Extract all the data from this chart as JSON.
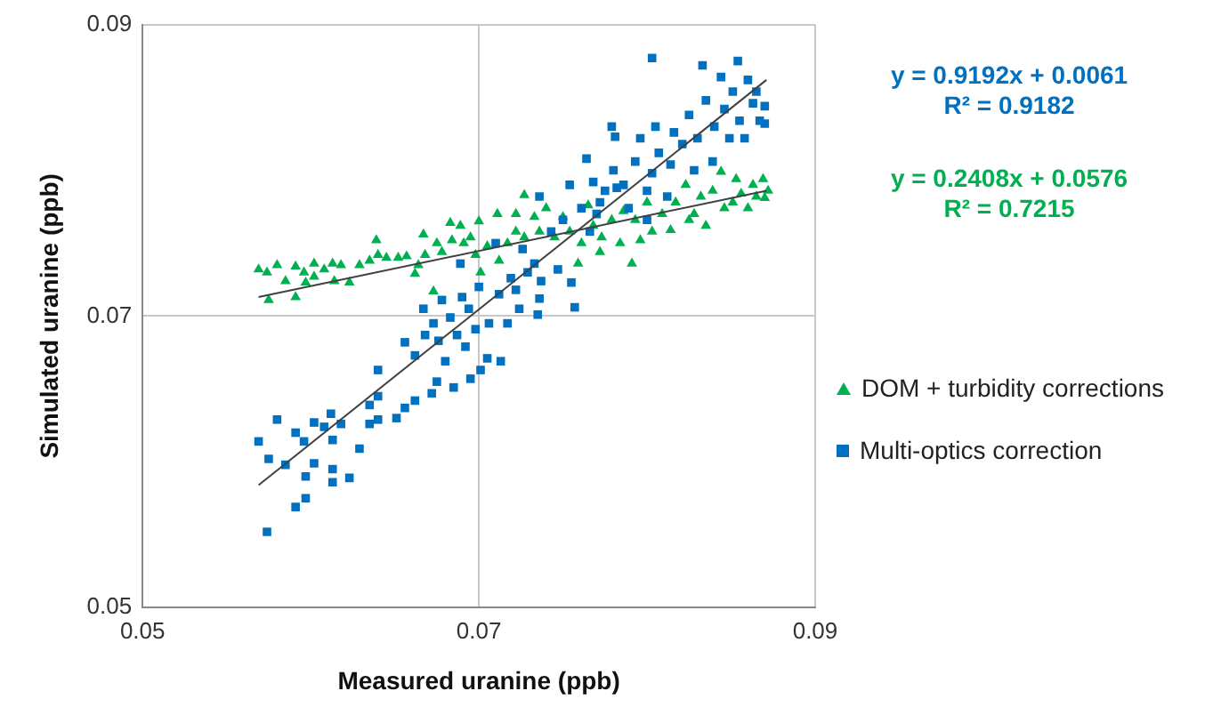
{
  "chart_data": {
    "type": "scatter",
    "xlabel": "Measured uranine (ppb)",
    "ylabel": "Simulated uranine (ppb)",
    "xlim": [
      0.05,
      0.09
    ],
    "xticks": [
      0.05,
      0.07,
      0.09
    ],
    "ylim": [
      0.05,
      0.09
    ],
    "yticks": [
      0.05,
      0.07,
      0.09
    ],
    "grid": true,
    "legend": "right",
    "annotations": [
      "y = 0.9192x + 0.0061",
      "R² = 0.9182",
      "y = 0.2408x + 0.0576",
      "R² = 0.7215"
    ],
    "series": [
      {
        "name": "Multi-optics correction",
        "color": "#0070c0",
        "marker": "square",
        "x": [
          0.0569,
          0.0574,
          0.0575,
          0.058,
          0.0585,
          0.0591,
          0.0591,
          0.0596,
          0.0597,
          0.0597,
          0.0602,
          0.0602,
          0.0608,
          0.0612,
          0.0613,
          0.0613,
          0.0613,
          0.0618,
          0.0623,
          0.0629,
          0.0635,
          0.0635,
          0.064,
          0.064,
          0.064,
          0.0651,
          0.0656,
          0.0656,
          0.0662,
          0.0662,
          0.0667,
          0.0668,
          0.0672,
          0.0673,
          0.0675,
          0.0676,
          0.0678,
          0.068,
          0.0683,
          0.0685,
          0.0687,
          0.0689,
          0.069,
          0.0692,
          0.0694,
          0.0695,
          0.0698,
          0.07,
          0.0701,
          0.0705,
          0.0706,
          0.071,
          0.0712,
          0.0713,
          0.0717,
          0.0719,
          0.0722,
          0.0724,
          0.0726,
          0.0729,
          0.0733,
          0.0735,
          0.0736,
          0.0736,
          0.0737,
          0.0743,
          0.0747,
          0.075,
          0.0754,
          0.0755,
          0.0757,
          0.0761,
          0.0764,
          0.0766,
          0.0768,
          0.0772,
          0.0775,
          0.0779,
          0.078,
          0.0781,
          0.0786,
          0.0789,
          0.0793,
          0.0796,
          0.08,
          0.0803,
          0.0805,
          0.0807,
          0.0812,
          0.0814,
          0.0816,
          0.0821,
          0.0825,
          0.0828,
          0.083,
          0.0833,
          0.0835,
          0.0839,
          0.084,
          0.0844,
          0.0846,
          0.0849,
          0.0851,
          0.0854,
          0.0855,
          0.0858,
          0.086,
          0.0863,
          0.0865,
          0.0867,
          0.087,
          0.087,
          0.0803,
          0.0782,
          0.077,
          0.08
        ],
        "values": [
          0.0614,
          0.0552,
          0.0602,
          0.0629,
          0.0598,
          0.062,
          0.0569,
          0.0614,
          0.059,
          0.0575,
          0.0627,
          0.0599,
          0.0624,
          0.0633,
          0.0615,
          0.0595,
          0.0586,
          0.0626,
          0.0589,
          0.0609,
          0.0639,
          0.0626,
          0.0663,
          0.0645,
          0.0629,
          0.063,
          0.0637,
          0.0682,
          0.0642,
          0.0673,
          0.0705,
          0.0687,
          0.0647,
          0.0695,
          0.0655,
          0.0683,
          0.0711,
          0.0669,
          0.0699,
          0.0651,
          0.0687,
          0.0736,
          0.0713,
          0.0679,
          0.0705,
          0.0657,
          0.0691,
          0.072,
          0.0663,
          0.0671,
          0.0695,
          0.075,
          0.0715,
          0.0669,
          0.0695,
          0.0726,
          0.0718,
          0.0705,
          0.0746,
          0.073,
          0.0736,
          0.0701,
          0.0782,
          0.0712,
          0.0724,
          0.0758,
          0.0732,
          0.0766,
          0.079,
          0.0723,
          0.0706,
          0.0774,
          0.0808,
          0.0758,
          0.0792,
          0.0778,
          0.0786,
          0.083,
          0.08,
          0.0823,
          0.079,
          0.0774,
          0.0806,
          0.0822,
          0.0786,
          0.0798,
          0.083,
          0.0812,
          0.0782,
          0.0804,
          0.0826,
          0.0818,
          0.0838,
          0.08,
          0.0822,
          0.0872,
          0.0848,
          0.0806,
          0.083,
          0.0864,
          0.0842,
          0.0822,
          0.0854,
          0.0875,
          0.0834,
          0.0822,
          0.0862,
          0.0846,
          0.0854,
          0.0834,
          0.0844,
          0.0832,
          0.0877,
          0.0788,
          0.077,
          0.0766
        ]
      },
      {
        "name": "DOM + turbidity corrections",
        "color": "#00b050",
        "marker": "triangle",
        "x": [
          0.0569,
          0.0574,
          0.0575,
          0.058,
          0.0585,
          0.0591,
          0.0591,
          0.0596,
          0.0597,
          0.0602,
          0.0602,
          0.0608,
          0.0613,
          0.0614,
          0.0618,
          0.0623,
          0.0629,
          0.0635,
          0.0639,
          0.064,
          0.0645,
          0.0652,
          0.0657,
          0.0662,
          0.0664,
          0.0667,
          0.0668,
          0.0673,
          0.0675,
          0.0678,
          0.0683,
          0.0684,
          0.0689,
          0.0691,
          0.0695,
          0.0698,
          0.07,
          0.0701,
          0.0705,
          0.0711,
          0.0712,
          0.0717,
          0.0722,
          0.0722,
          0.0727,
          0.0727,
          0.0733,
          0.0736,
          0.074,
          0.0745,
          0.075,
          0.0754,
          0.0759,
          0.0761,
          0.0765,
          0.0768,
          0.0772,
          0.0773,
          0.0779,
          0.0784,
          0.0786,
          0.0791,
          0.0793,
          0.0796,
          0.08,
          0.0803,
          0.0809,
          0.0814,
          0.0817,
          0.0823,
          0.0825,
          0.0828,
          0.0832,
          0.0835,
          0.0839,
          0.0844,
          0.0846,
          0.0851,
          0.0853,
          0.0856,
          0.086,
          0.0863,
          0.0865,
          0.0869,
          0.087,
          0.0872
        ],
        "values": [
          0.0732,
          0.073,
          0.0711,
          0.0735,
          0.0724,
          0.0734,
          0.0713,
          0.073,
          0.0723,
          0.0736,
          0.0727,
          0.0732,
          0.0736,
          0.0724,
          0.0735,
          0.0723,
          0.0735,
          0.0738,
          0.0752,
          0.0742,
          0.074,
          0.074,
          0.0741,
          0.0729,
          0.0735,
          0.0756,
          0.0742,
          0.0717,
          0.075,
          0.0744,
          0.0764,
          0.0752,
          0.0762,
          0.075,
          0.0754,
          0.0742,
          0.0765,
          0.073,
          0.0748,
          0.077,
          0.0738,
          0.075,
          0.077,
          0.0758,
          0.0783,
          0.0754,
          0.0768,
          0.0758,
          0.0774,
          0.0754,
          0.0768,
          0.0758,
          0.0736,
          0.075,
          0.0776,
          0.0762,
          0.0744,
          0.0754,
          0.0766,
          0.075,
          0.0772,
          0.0736,
          0.0766,
          0.0752,
          0.0778,
          0.0758,
          0.077,
          0.0759,
          0.0778,
          0.079,
          0.0766,
          0.077,
          0.0782,
          0.0762,
          0.0786,
          0.0799,
          0.0774,
          0.0778,
          0.0794,
          0.0784,
          0.0774,
          0.079,
          0.0782,
          0.0794,
          0.0781,
          0.0786
        ]
      },
      {
        "type": "line",
        "color": "#404040",
        "marker": "none",
        "x": [
          0.0569,
          0.0871
        ],
        "values": [
          0.0584,
          0.0862
        ]
      },
      {
        "type": "line",
        "color": "#404040",
        "marker": "none",
        "x": [
          0.0569,
          0.0871
        ],
        "values": [
          0.0713,
          0.0786
        ]
      }
    ]
  }
}
